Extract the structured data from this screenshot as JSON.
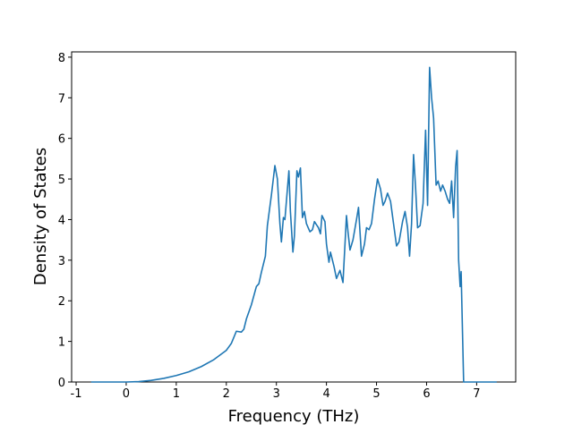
{
  "chart_data": {
    "type": "line",
    "xlabel": "Frequency (THz)",
    "ylabel": "Density of States",
    "x": [
      -0.7,
      0,
      0.25,
      0.5,
      0.75,
      1,
      1.25,
      1.5,
      1.75,
      2,
      2.1,
      2.2,
      2.3,
      2.35,
      2.4,
      2.5,
      2.6,
      2.65,
      2.7,
      2.78,
      2.82,
      2.9,
      2.97,
      3.02,
      3.07,
      3.1,
      3.14,
      3.17,
      3.25,
      3.28,
      3.33,
      3.36,
      3.41,
      3.44,
      3.48,
      3.52,
      3.56,
      3.6,
      3.67,
      3.72,
      3.76,
      3.84,
      3.88,
      3.91,
      3.97,
      4.0,
      4.05,
      4.08,
      4.15,
      4.2,
      4.27,
      4.33,
      4.4,
      4.43,
      4.47,
      4.53,
      4.6,
      4.64,
      4.7,
      4.76,
      4.8,
      4.85,
      4.9,
      4.96,
      5.02,
      5.08,
      5.13,
      5.17,
      5.22,
      5.28,
      5.34,
      5.4,
      5.45,
      5.52,
      5.57,
      5.62,
      5.66,
      5.7,
      5.74,
      5.78,
      5.82,
      5.87,
      5.93,
      5.98,
      6.02,
      6.06,
      6.1,
      6.14,
      6.19,
      6.23,
      6.28,
      6.32,
      6.37,
      6.42,
      6.46,
      6.5,
      6.54,
      6.58,
      6.61,
      6.64,
      6.67,
      6.69,
      6.74,
      7.4
    ],
    "series": [
      {
        "color": "#1f77b4",
        "values": [
          0,
          0,
          0.01,
          0.04,
          0.09,
          0.16,
          0.25,
          0.38,
          0.55,
          0.78,
          0.95,
          1.25,
          1.23,
          1.3,
          1.55,
          1.9,
          2.35,
          2.42,
          2.7,
          3.1,
          3.85,
          4.6,
          5.33,
          5.0,
          3.9,
          3.45,
          4.05,
          4.0,
          5.2,
          4.2,
          3.2,
          3.6,
          5.2,
          5.05,
          5.27,
          4.05,
          4.2,
          3.9,
          3.7,
          3.75,
          3.95,
          3.8,
          3.65,
          4.1,
          3.95,
          3.4,
          2.95,
          3.2,
          2.85,
          2.55,
          2.75,
          2.45,
          4.1,
          3.7,
          3.25,
          3.5,
          4.0,
          4.3,
          3.1,
          3.4,
          3.8,
          3.75,
          3.9,
          4.5,
          5.0,
          4.75,
          4.35,
          4.45,
          4.65,
          4.45,
          3.9,
          3.35,
          3.45,
          3.95,
          4.2,
          3.8,
          3.1,
          3.9,
          5.6,
          4.8,
          3.8,
          3.85,
          4.4,
          6.2,
          4.35,
          7.75,
          7.0,
          6.5,
          4.85,
          4.95,
          4.7,
          4.85,
          4.7,
          4.5,
          4.4,
          4.95,
          4.05,
          5.3,
          5.7,
          3.0,
          2.35,
          2.72,
          0,
          0
        ]
      }
    ],
    "xlim": [
      -1.09,
      7.78
    ],
    "ylim": [
      0,
      8.13
    ],
    "xticks": [
      -1,
      0,
      1,
      2,
      3,
      4,
      5,
      6,
      7
    ],
    "yticks": [
      0,
      1,
      2,
      3,
      4,
      5,
      6,
      7,
      8
    ]
  }
}
